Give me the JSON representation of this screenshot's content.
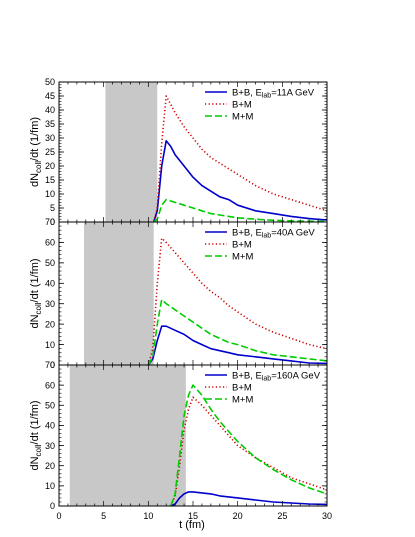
{
  "chart_data": [
    {
      "type": "line",
      "xlabel": "",
      "ylabel": "",
      "xlim": [
        0,
        30
      ],
      "ylim": [
        0,
        50
      ],
      "yticks": [
        0,
        5,
        10,
        15,
        20,
        25,
        30,
        35,
        40,
        45,
        50
      ],
      "shaded_region": [
        5.2,
        11.0
      ],
      "legend": {
        "placement": "top-right",
        "title_prefix": "B+B, E",
        "title_sub": "lab",
        "title_suffix": "=11A GeV"
      },
      "series": [
        {
          "name": "B+B",
          "color": "#0000cc",
          "style": "solid",
          "x": [
            10.6,
            11.0,
            11.5,
            12.0,
            12.5,
            13.0,
            14.0,
            15.0,
            16.0,
            17.0,
            18.0,
            19.0,
            20.0,
            22.0,
            24.0,
            26.0,
            28.0,
            30.0
          ],
          "y": [
            0,
            4,
            20,
            29,
            27,
            24,
            20,
            16,
            13,
            11,
            9,
            8,
            6,
            4,
            3,
            2,
            1.2,
            0.7
          ]
        },
        {
          "name": "B+M",
          "color": "#cc0000",
          "style": "dotted",
          "x": [
            10.6,
            11.0,
            11.5,
            12.0,
            12.5,
            13.0,
            14.0,
            15.0,
            16.0,
            17.0,
            18.0,
            19.0,
            20.0,
            22.0,
            24.0,
            26.0,
            28.0,
            30.0
          ],
          "y": [
            0,
            5,
            28,
            45,
            42,
            39,
            34,
            30,
            26,
            23,
            21,
            19,
            17,
            13,
            10,
            8,
            6,
            4
          ]
        },
        {
          "name": "M+M",
          "color": "#00cc00",
          "style": "dashed",
          "x": [
            10.6,
            11.0,
            11.5,
            12.0,
            12.5,
            13.0,
            14.0,
            15.0,
            16.0,
            17.0,
            18.0,
            19.0,
            20.0,
            22.0,
            24.0,
            26.0,
            28.0,
            30.0
          ],
          "y": [
            0,
            1,
            6,
            8,
            7.5,
            7,
            6,
            5,
            4,
            3,
            2.5,
            2,
            1.5,
            1,
            0.6,
            0.4,
            0.3,
            0.2
          ]
        }
      ]
    },
    {
      "type": "line",
      "xlabel": "",
      "ylabel": "",
      "xlim": [
        0,
        30
      ],
      "ylim": [
        0,
        70
      ],
      "yticks": [
        0,
        10,
        20,
        30,
        40,
        50,
        60,
        70
      ],
      "shaded_region": [
        2.8,
        10.6
      ],
      "legend": {
        "placement": "top-right",
        "title_prefix": "B+B, E",
        "title_sub": "lab",
        "title_suffix": "=40A GeV"
      },
      "series": [
        {
          "name": "B+B",
          "color": "#0000cc",
          "style": "solid",
          "x": [
            10.0,
            10.5,
            11.0,
            11.5,
            12.0,
            13.0,
            14.0,
            15.0,
            16.0,
            17.0,
            18.0,
            19.0,
            20.0,
            22.0,
            24.0,
            26.0,
            28.0,
            30.0
          ],
          "y": [
            0,
            3,
            12,
            19,
            19,
            17,
            15,
            12,
            10,
            8,
            7,
            6,
            5,
            4,
            3,
            2,
            1,
            0.8
          ]
        },
        {
          "name": "B+M",
          "color": "#cc0000",
          "style": "dotted",
          "x": [
            10.0,
            10.5,
            11.0,
            11.5,
            12.0,
            13.0,
            14.0,
            15.0,
            16.0,
            17.0,
            18.0,
            19.0,
            20.0,
            22.0,
            24.0,
            26.0,
            28.0,
            30.0
          ],
          "y": [
            0,
            8,
            40,
            62,
            60,
            55,
            50,
            45,
            40,
            36,
            33,
            29,
            26,
            20,
            16,
            13,
            10,
            8
          ]
        },
        {
          "name": "M+M",
          "color": "#00cc00",
          "style": "dashed",
          "x": [
            10.0,
            10.5,
            11.0,
            11.5,
            12.0,
            13.0,
            14.0,
            15.0,
            16.0,
            17.0,
            18.0,
            19.0,
            20.0,
            22.0,
            24.0,
            26.0,
            28.0,
            30.0
          ],
          "y": [
            0,
            4,
            20,
            32,
            30,
            27,
            24,
            21,
            18,
            15,
            13,
            11,
            10,
            7,
            5,
            4,
            3,
            2
          ]
        }
      ]
    },
    {
      "type": "line",
      "xlabel": "t (fm)",
      "ylabel": "",
      "xlim": [
        0,
        30
      ],
      "ylim": [
        0,
        70
      ],
      "xticks": [
        0,
        5,
        10,
        15,
        20,
        25,
        30
      ],
      "yticks": [
        0,
        10,
        20,
        30,
        40,
        50,
        60,
        70
      ],
      "shaded_region": [
        1.2,
        14.2
      ],
      "legend": {
        "placement": "top-right",
        "title_prefix": "B+B, E",
        "title_sub": "lab",
        "title_suffix": "=160A GeV"
      },
      "series": [
        {
          "name": "B+B",
          "color": "#0000cc",
          "style": "solid",
          "x": [
            12.5,
            13.0,
            13.5,
            14.0,
            14.5,
            15.0,
            16.0,
            17.0,
            18.0,
            20.0,
            22.0,
            24.0,
            26.0,
            28.0,
            30.0
          ],
          "y": [
            0,
            1,
            4,
            6,
            7,
            7,
            6.5,
            6,
            5,
            4,
            3,
            2,
            1.5,
            1,
            0.8
          ]
        },
        {
          "name": "B+M",
          "color": "#cc0000",
          "style": "dotted",
          "x": [
            12.5,
            13.0,
            13.5,
            14.0,
            14.5,
            15.0,
            16.0,
            17.0,
            18.0,
            19.0,
            20.0,
            22.0,
            24.0,
            26.0,
            28.0,
            30.0
          ],
          "y": [
            0,
            5,
            20,
            38,
            48,
            54,
            50,
            45,
            40,
            35,
            30,
            24,
            19,
            14,
            11,
            8
          ]
        },
        {
          "name": "M+M",
          "color": "#00cc00",
          "style": "dashed",
          "x": [
            12.5,
            13.0,
            13.5,
            14.0,
            14.5,
            15.0,
            16.0,
            17.0,
            18.0,
            19.0,
            20.0,
            22.0,
            24.0,
            26.0,
            28.0,
            30.0
          ],
          "y": [
            0,
            6,
            25,
            45,
            55,
            60,
            55,
            48,
            42,
            37,
            32,
            24,
            18,
            13,
            9,
            6
          ]
        }
      ]
    }
  ],
  "shared": {
    "ylabel_main": "dN",
    "ylabel_sub": "coll",
    "ylabel_rest": "/dt (1/fm)",
    "xlabel": "t (fm)",
    "shade_color": "#c8c8c8"
  }
}
